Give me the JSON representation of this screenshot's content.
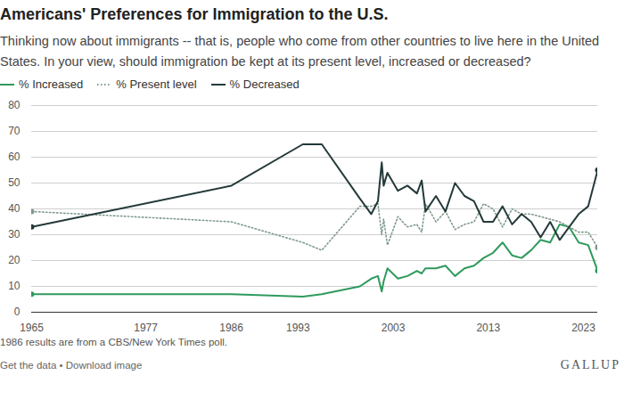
{
  "chart_data": {
    "type": "line",
    "title": "Americans' Preferences for Immigration to the U.S.",
    "subtitle": "Thinking now about immigrants -- that is, people who come from other countries to live here in the United States. In your view, should immigration be kept at its present level, increased or decreased?",
    "caption": "1986 results are from a CBS/New York Times poll.",
    "footer": "Get the data • Download image",
    "logo": "GALLUP",
    "x": [
      1965,
      1986,
      1993.5,
      1995.5,
      1999.5,
      2000.7,
      2001.4,
      2001.8,
      2002.0,
      2002.4,
      2003.5,
      2004.5,
      2005.5,
      2006.0,
      2006.4,
      2007.5,
      2008.5,
      2009.5,
      2010.5,
      2011.5,
      2012.5,
      2013.5,
      2014.5,
      2015.5,
      2016.5,
      2017.5,
      2018.5,
      2019.5,
      2020.5,
      2021.5,
      2022.5,
      2023.5,
      2024.5
    ],
    "series": [
      {
        "name": "% Increased",
        "color": "#2f9a5d",
        "line_style": "solid",
        "marker": "endpoints",
        "values": [
          7,
          7,
          6,
          7,
          10,
          13,
          14,
          8,
          12,
          17,
          13,
          14,
          16,
          15,
          17,
          17,
          18,
          14,
          17,
          18,
          21,
          23,
          27,
          22,
          21,
          24,
          28,
          27,
          34,
          33,
          27,
          26,
          16
        ]
      },
      {
        "name": "% Present level",
        "color": "#7f9a8c",
        "line_style": "dotted",
        "marker": "endpoints",
        "values": [
          39,
          35,
          27,
          24,
          41,
          41,
          42,
          30,
          36,
          26,
          37,
          33,
          34,
          31,
          42,
          35,
          39,
          32,
          34,
          35,
          42,
          40,
          33,
          40,
          38,
          38,
          37,
          36,
          35,
          33,
          31,
          31,
          25
        ]
      },
      {
        "name": "% Decreased",
        "color": "#24393a",
        "line_style": "solid",
        "marker": "endpoints",
        "values": [
          33,
          49,
          65,
          65,
          44,
          38,
          43,
          58,
          49,
          54,
          47,
          49,
          46,
          51,
          39,
          45,
          39,
          50,
          45,
          43,
          35,
          35,
          41,
          34,
          38,
          35,
          29,
          35,
          28,
          33,
          38,
          41,
          55
        ]
      }
    ],
    "xlim": [
      1965,
      2024.5
    ],
    "xticks": [
      1965,
      1977,
      1986,
      1993,
      2003,
      2013,
      2023
    ],
    "ylim": [
      0,
      80
    ],
    "yticks": [
      0,
      10,
      20,
      30,
      40,
      50,
      60,
      70,
      80
    ],
    "grid": true,
    "legend": "top"
  }
}
